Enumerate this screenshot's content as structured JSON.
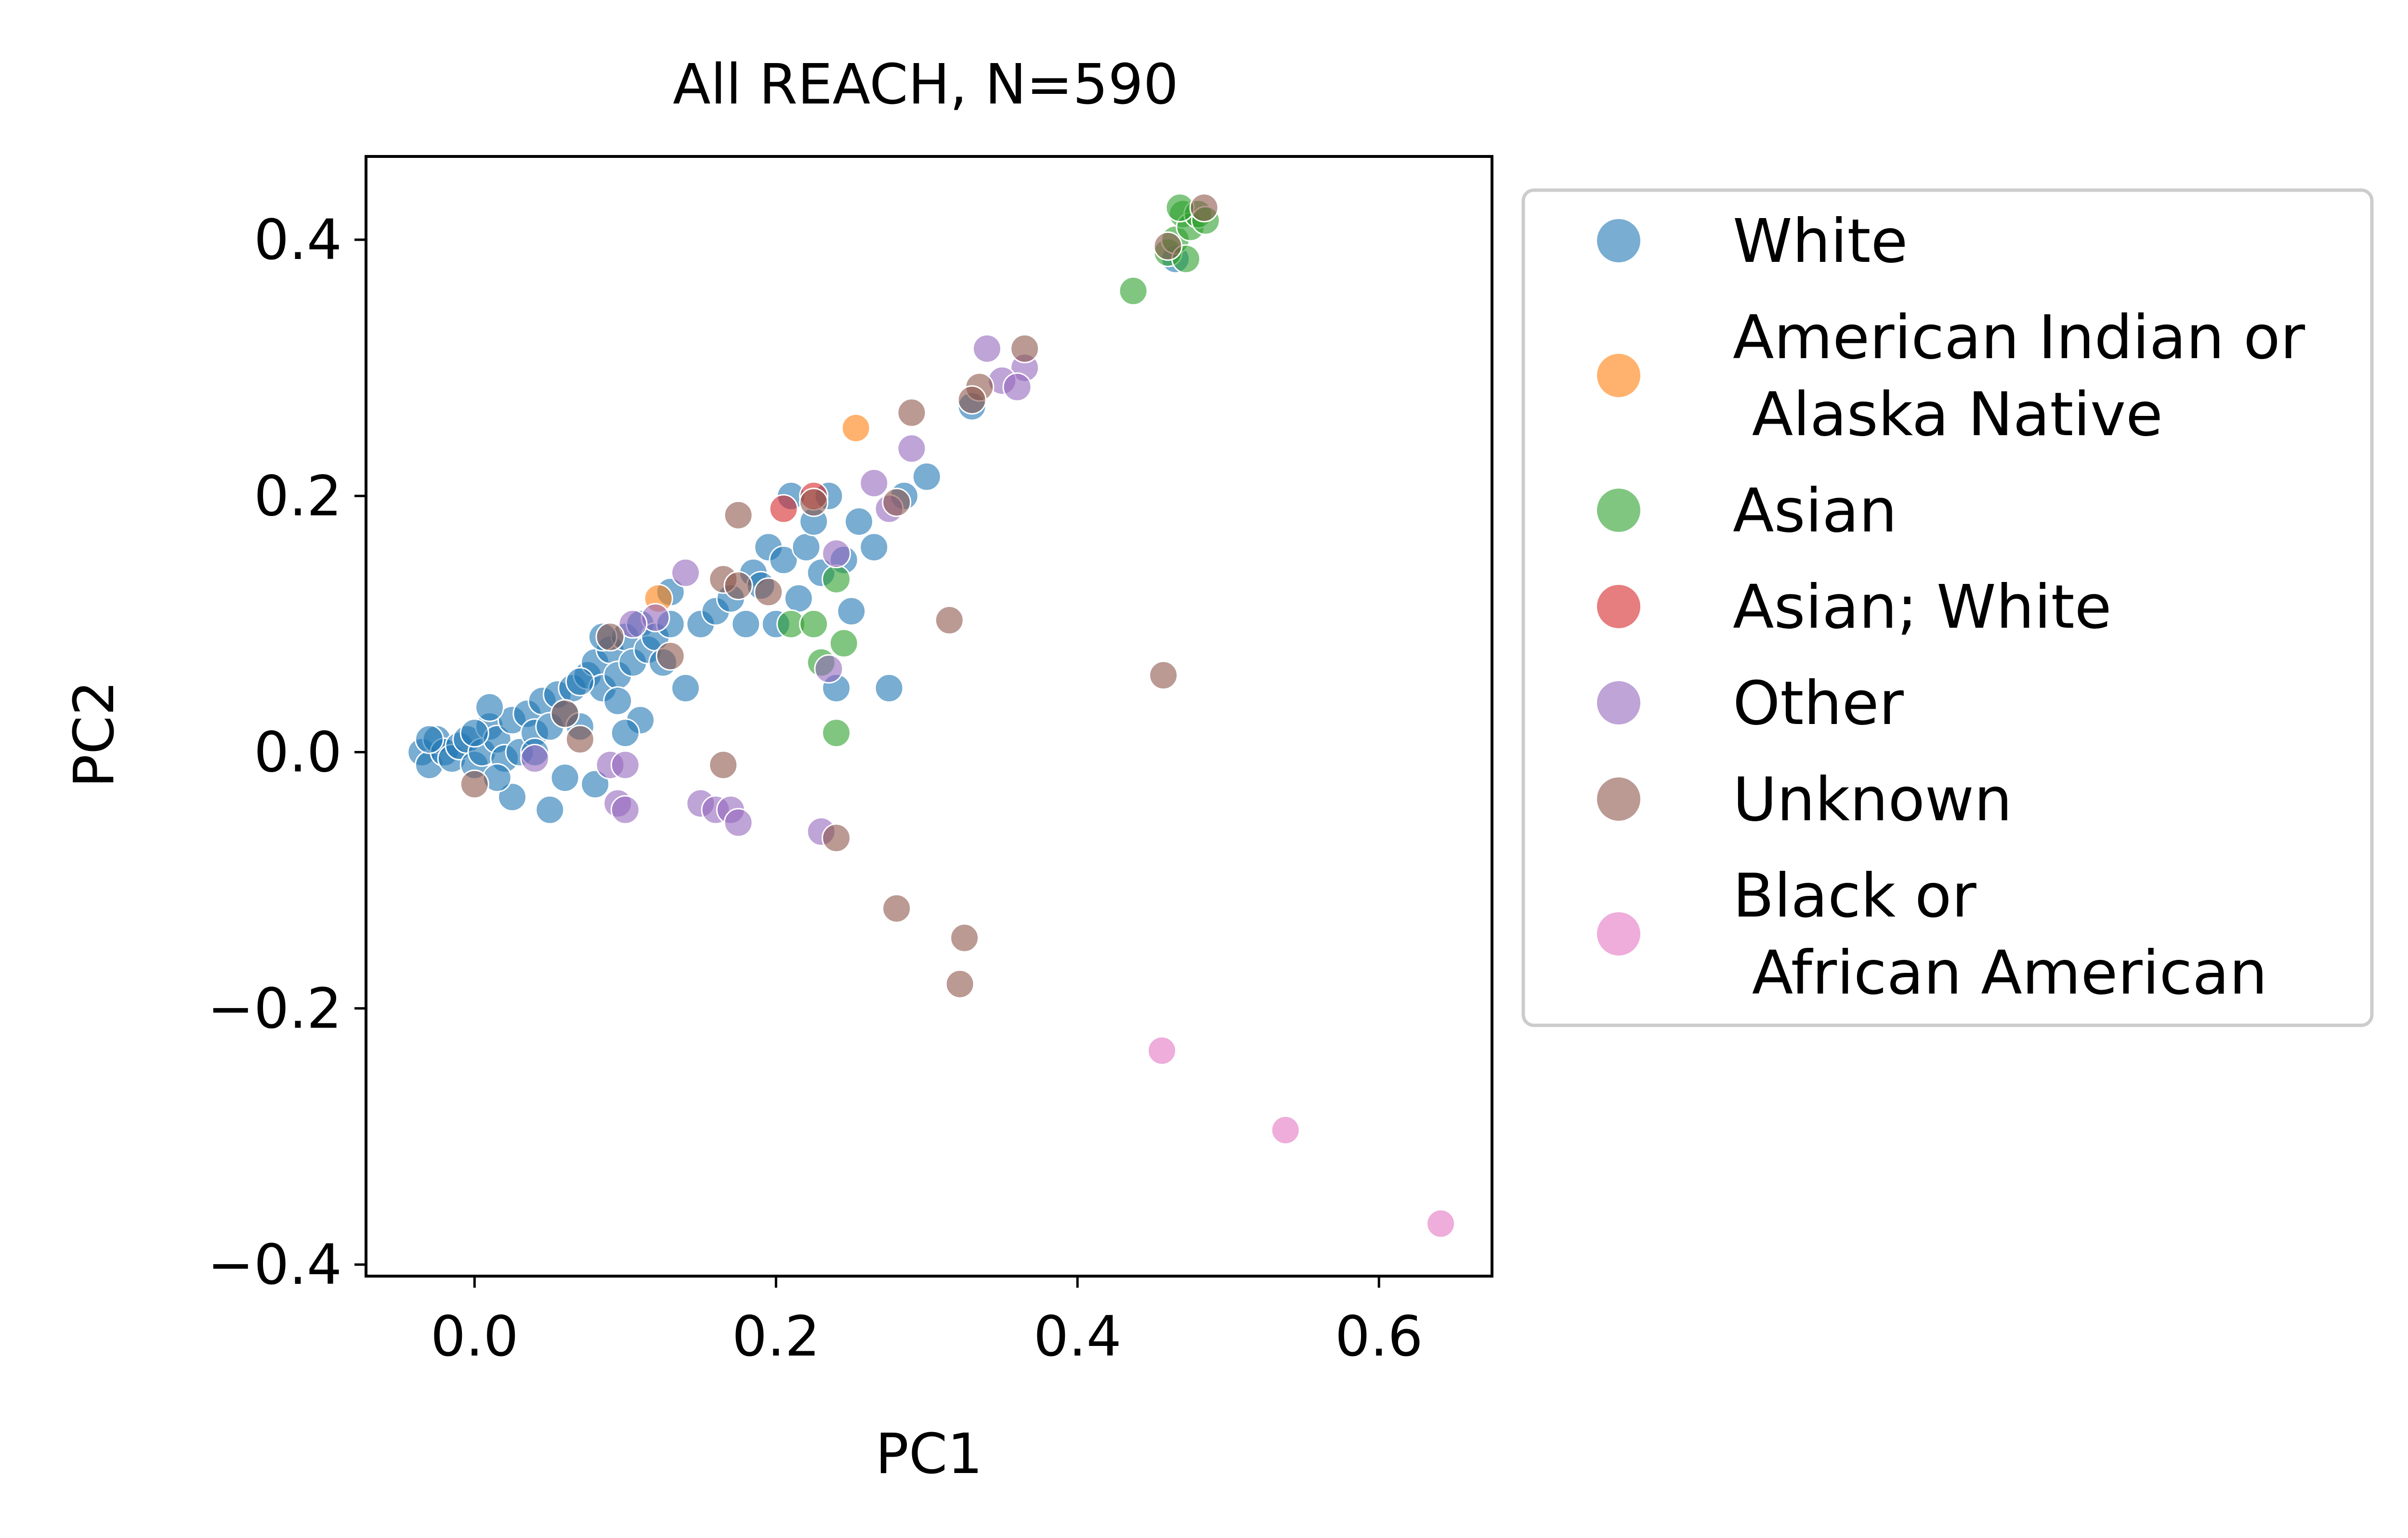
{
  "chart_data": {
    "type": "scatter",
    "title": "All REACH, N=590",
    "xlabel": "PC1",
    "ylabel": "PC2",
    "xlim": [
      -0.072,
      0.675
    ],
    "ylim": [
      -0.409,
      0.465
    ],
    "xticks": [
      {
        "value": 0.0,
        "label": "0.0"
      },
      {
        "value": 0.2,
        "label": "0.2"
      },
      {
        "value": 0.4,
        "label": "0.4"
      },
      {
        "value": 0.6,
        "label": "0.6"
      }
    ],
    "yticks": [
      {
        "value": 0.4,
        "label": "0.4"
      },
      {
        "value": 0.2,
        "label": "0.2"
      },
      {
        "value": 0.0,
        "label": "0.0"
      },
      {
        "value": -0.2,
        "label": "−0.2"
      },
      {
        "value": -0.4,
        "label": "−0.4"
      }
    ],
    "grid": false,
    "legend_position": "outside-right",
    "series": [
      {
        "name": "White",
        "color": "#1f77b4",
        "points": [
          [
            -0.035,
            0.0
          ],
          [
            -0.03,
            -0.01
          ],
          [
            -0.025,
            0.01
          ],
          [
            -0.02,
            0.0
          ],
          [
            -0.015,
            -0.005
          ],
          [
            -0.01,
            0.005
          ],
          [
            -0.005,
            0.01
          ],
          [
            0.0,
            -0.01
          ],
          [
            0.005,
            0.0
          ],
          [
            0.01,
            0.02
          ],
          [
            0.015,
            0.01
          ],
          [
            0.02,
            -0.005
          ],
          [
            0.025,
            0.025
          ],
          [
            0.03,
            0.0
          ],
          [
            0.035,
            0.03
          ],
          [
            0.04,
            0.015
          ],
          [
            0.045,
            0.04
          ],
          [
            0.05,
            0.02
          ],
          [
            0.055,
            0.045
          ],
          [
            0.06,
            0.03
          ],
          [
            0.065,
            0.05
          ],
          [
            0.07,
            0.02
          ],
          [
            0.075,
            0.06
          ],
          [
            0.08,
            0.07
          ],
          [
            0.085,
            0.05
          ],
          [
            0.09,
            0.08
          ],
          [
            0.095,
            0.06
          ],
          [
            0.1,
            0.09
          ],
          [
            0.105,
            0.07
          ],
          [
            0.11,
            0.1
          ],
          [
            0.115,
            0.08
          ],
          [
            0.12,
            0.09
          ],
          [
            0.125,
            0.07
          ],
          [
            0.13,
            0.1
          ],
          [
            0.14,
            0.05
          ],
          [
            0.15,
            0.1
          ],
          [
            0.16,
            0.11
          ],
          [
            0.17,
            0.12
          ],
          [
            0.18,
            0.1
          ],
          [
            0.185,
            0.14
          ],
          [
            0.19,
            0.13
          ],
          [
            0.195,
            0.16
          ],
          [
            0.2,
            0.1
          ],
          [
            0.205,
            0.15
          ],
          [
            0.21,
            0.2
          ],
          [
            0.215,
            0.12
          ],
          [
            0.22,
            0.16
          ],
          [
            0.225,
            0.18
          ],
          [
            0.23,
            0.14
          ],
          [
            0.235,
            0.2
          ],
          [
            0.24,
            0.05
          ],
          [
            0.245,
            0.15
          ],
          [
            0.25,
            0.11
          ],
          [
            0.255,
            0.18
          ],
          [
            0.265,
            0.16
          ],
          [
            0.275,
            0.05
          ],
          [
            0.285,
            0.2
          ],
          [
            0.3,
            0.215
          ],
          [
            0.33,
            0.27
          ],
          [
            0.01,
            0.035
          ],
          [
            0.06,
            -0.02
          ],
          [
            0.08,
            -0.025
          ],
          [
            0.05,
            -0.045
          ],
          [
            0.025,
            -0.035
          ],
          [
            0.0,
            0.015
          ],
          [
            0.11,
            0.025
          ],
          [
            0.1,
            0.015
          ],
          [
            0.13,
            0.125
          ],
          [
            0.085,
            0.09
          ],
          [
            0.465,
            0.385
          ],
          [
            -0.03,
            0.01
          ],
          [
            0.015,
            -0.02
          ],
          [
            0.04,
            0.0
          ],
          [
            0.07,
            0.055
          ],
          [
            0.095,
            0.04
          ]
        ]
      },
      {
        "name": "American Indian or\n Alaska Native",
        "color": "#ff7f0e",
        "points": [
          [
            0.253,
            0.253
          ],
          [
            0.122,
            0.12
          ]
        ]
      },
      {
        "name": "Asian",
        "color": "#2ca02c",
        "points": [
          [
            0.437,
            0.36
          ],
          [
            0.46,
            0.39
          ],
          [
            0.465,
            0.4
          ],
          [
            0.47,
            0.42
          ],
          [
            0.475,
            0.41
          ],
          [
            0.48,
            0.42
          ],
          [
            0.468,
            0.425
          ],
          [
            0.485,
            0.415
          ],
          [
            0.472,
            0.385
          ],
          [
            0.24,
            0.015
          ],
          [
            0.23,
            0.07
          ],
          [
            0.245,
            0.085
          ],
          [
            0.21,
            0.1
          ],
          [
            0.24,
            0.135
          ],
          [
            0.225,
            0.1
          ]
        ]
      },
      {
        "name": "Asian; White",
        "color": "#d62728",
        "points": [
          [
            0.205,
            0.19
          ],
          [
            0.225,
            0.2
          ]
        ]
      },
      {
        "name": "Other",
        "color": "#9467bd",
        "points": [
          [
            0.34,
            0.315
          ],
          [
            0.365,
            0.3
          ],
          [
            0.35,
            0.29
          ],
          [
            0.36,
            0.285
          ],
          [
            0.29,
            0.237
          ],
          [
            0.265,
            0.21
          ],
          [
            0.275,
            0.19
          ],
          [
            0.14,
            0.14
          ],
          [
            0.24,
            0.155
          ],
          [
            0.235,
            0.065
          ],
          [
            0.09,
            -0.01
          ],
          [
            0.1,
            -0.01
          ],
          [
            0.095,
            -0.04
          ],
          [
            0.1,
            -0.045
          ],
          [
            0.15,
            -0.04
          ],
          [
            0.16,
            -0.045
          ],
          [
            0.17,
            -0.045
          ],
          [
            0.175,
            -0.055
          ],
          [
            0.23,
            -0.062
          ],
          [
            0.04,
            -0.005
          ],
          [
            0.12,
            0.105
          ],
          [
            0.105,
            0.1
          ]
        ]
      },
      {
        "name": "Unknown",
        "color": "#8c564b",
        "points": [
          [
            0.484,
            0.425
          ],
          [
            0.46,
            0.395
          ],
          [
            0.365,
            0.315
          ],
          [
            0.335,
            0.285
          ],
          [
            0.33,
            0.275
          ],
          [
            0.29,
            0.265
          ],
          [
            0.28,
            0.195
          ],
          [
            0.175,
            0.185
          ],
          [
            0.225,
            0.195
          ],
          [
            0.165,
            0.135
          ],
          [
            0.175,
            0.13
          ],
          [
            0.195,
            0.125
          ],
          [
            0.315,
            0.103
          ],
          [
            0.457,
            0.06
          ],
          [
            0.165,
            -0.01
          ],
          [
            0.24,
            -0.067
          ],
          [
            0.28,
            -0.122
          ],
          [
            0.325,
            -0.145
          ],
          [
            0.322,
            -0.181
          ],
          [
            0.09,
            0.09
          ],
          [
            0.07,
            0.01
          ],
          [
            0.06,
            0.03
          ],
          [
            0.13,
            0.075
          ],
          [
            0.0,
            -0.025
          ]
        ]
      },
      {
        "name": "Black or\n African American",
        "color": "#e377c2",
        "points": [
          [
            0.456,
            -0.233
          ],
          [
            0.538,
            -0.295
          ],
          [
            0.641,
            -0.368
          ]
        ]
      }
    ]
  }
}
